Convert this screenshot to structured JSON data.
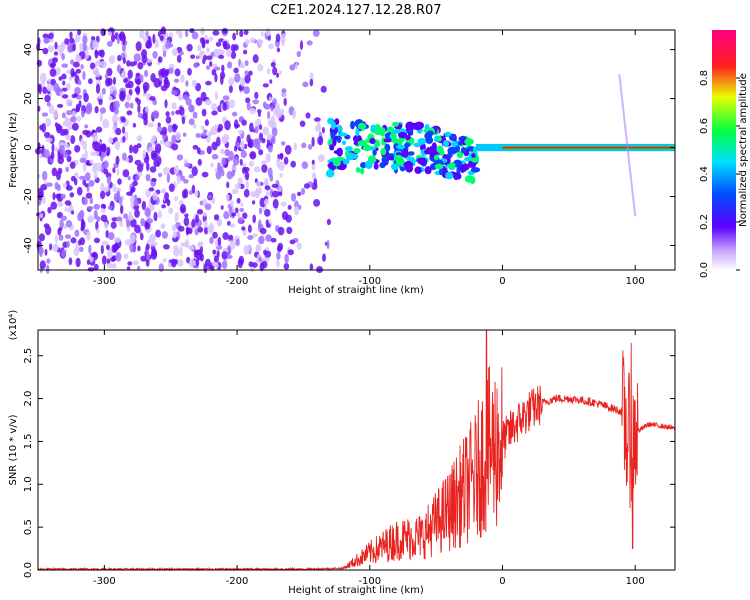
{
  "title": "C2E1.2024.127.12.28.R07",
  "colors": {
    "snr_line": "#e8231f",
    "spectrogram_noise": "#7a1fe8",
    "spectrogram_signal": "#e8231f"
  },
  "chart_data": [
    {
      "type": "heatmap",
      "title": "C2E1.2024.127.12.28.R07",
      "xlabel": "Height of straight line (km)",
      "ylabel": "Frequency (Hz)",
      "xlim": [
        -350,
        130
      ],
      "ylim": [
        -50,
        48
      ],
      "x_ticks": [
        -300,
        -200,
        -100,
        0,
        100
      ],
      "y_ticks": [
        -40,
        -20,
        0,
        20,
        40
      ],
      "colorbar": {
        "label": "Normalized spectral amplitude",
        "range": [
          0.0,
          1.0
        ],
        "ticks": [
          "0.0",
          "0.2",
          "0.4",
          "0.6",
          "0.8"
        ],
        "colormap": "rainbow (white-violet-blue-cyan-green-yellow-red-magenta)"
      },
      "features": {
        "noise_region_x": [
          -350,
          -130
        ],
        "signal_onset_x": -130,
        "stable_carrier_x": [
          0,
          130
        ],
        "carrier_frequency_hz": 0,
        "streak_near_x": 95
      }
    },
    {
      "type": "line",
      "xlabel": "Height of straight line (km)",
      "ylabel": "SNR (10 * v/v)",
      "y_multiplier": "(x10⁴)",
      "xlim": [
        -350,
        130
      ],
      "ylim": [
        0,
        2.8
      ],
      "x_ticks": [
        -300,
        -200,
        -100,
        0,
        100
      ],
      "y_ticks": [
        "0.0",
        "0.5",
        "1.0",
        "1.5",
        "2.0",
        "2.5"
      ],
      "series": [
        {
          "x": [
            -350,
            -300,
            -250,
            -200,
            -150,
            -120,
            -100,
            -80,
            -60,
            -40,
            -30,
            -20,
            -15,
            -10,
            0,
            10,
            20,
            30,
            40,
            50,
            60,
            70,
            80,
            90,
            95,
            100,
            105,
            110,
            120,
            130
          ],
          "y": [
            0.01,
            0.01,
            0.01,
            0.01,
            0.01,
            0.02,
            0.2,
            0.35,
            0.4,
            0.7,
            0.9,
            1.1,
            1.3,
            1.4,
            1.5,
            1.7,
            1.85,
            1.95,
            2.0,
            2.0,
            1.98,
            1.95,
            1.9,
            1.85,
            1.5,
            1.6,
            1.65,
            1.7,
            1.68,
            1.65
          ]
        }
      ],
      "spikes": [
        {
          "x": -12,
          "y": 2.8
        },
        {
          "x": 97,
          "y": 2.65
        },
        {
          "x": 98,
          "y": 0.25
        }
      ]
    }
  ]
}
